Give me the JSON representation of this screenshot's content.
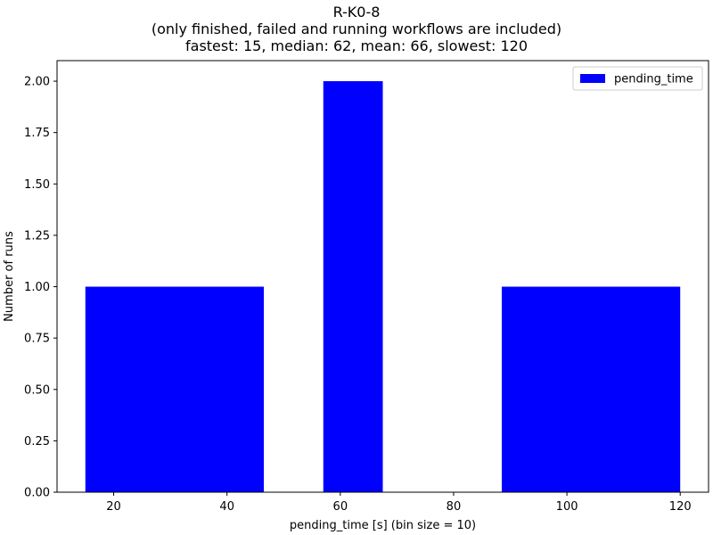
{
  "chart_data": {
    "type": "bar",
    "title": "R-K0-8",
    "subtitle": "(only finished, failed and running workflows are included)",
    "stats_line": "fastest: 15, median: 62, mean: 66, slowest: 120",
    "xlabel": "pending_time [s] (bin size = 10)",
    "ylabel": "Number of runs",
    "xlim": [
      10,
      125
    ],
    "ylim": [
      0,
      2.1
    ],
    "x_ticks": [
      20,
      40,
      60,
      80,
      100,
      120
    ],
    "y_ticks": [
      0.0,
      0.25,
      0.5,
      0.75,
      1.0,
      1.25,
      1.5,
      1.75,
      2.0
    ],
    "y_tick_labels": [
      "0.00",
      "0.25",
      "0.50",
      "0.75",
      "1.00",
      "1.25",
      "1.50",
      "1.75",
      "2.00"
    ],
    "grid": false,
    "legend": {
      "position": "top-right",
      "entries": [
        "pending_time"
      ]
    },
    "series": [
      {
        "name": "pending_time",
        "color": "#0000ff",
        "bars": [
          {
            "x_start": 15,
            "x_end": 46.5,
            "value": 1
          },
          {
            "x_start": 57,
            "x_end": 67.5,
            "value": 2
          },
          {
            "x_start": 88.5,
            "x_end": 120,
            "value": 1
          }
        ]
      }
    ]
  }
}
